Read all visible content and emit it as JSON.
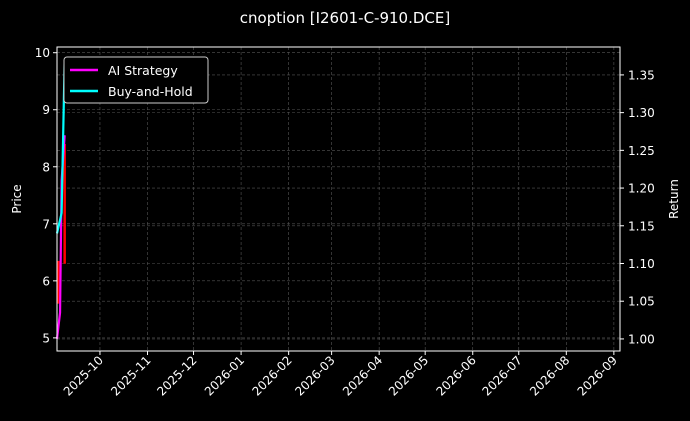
{
  "chart_data": {
    "type": "line",
    "title": "cnoption [I2601-C-910.DCE]",
    "ylabel_left": "Price",
    "ylabel_right": "Return",
    "xlabel": "",
    "xlim": [
      "2025-09-03",
      "2026-09-05"
    ],
    "ylim_left": [
      4.77,
      10.1
    ],
    "ylim_right": [
      0.984,
      1.387
    ],
    "x_tick_labels": [
      "2025-10",
      "2025-11",
      "2025-12",
      "2026-01",
      "2026-02",
      "2026-03",
      "2026-04",
      "2026-05",
      "2026-06",
      "2026-07",
      "2026-08",
      "2026-09"
    ],
    "y_left_ticks": [
      5,
      6,
      7,
      8,
      9,
      10
    ],
    "y_right_ticks": [
      "1.00",
      "1.05",
      "1.10",
      "1.15",
      "1.20",
      "1.25",
      "1.30",
      "1.35"
    ],
    "grid": true,
    "legend_position": "top-left",
    "series": [
      {
        "name": "AI Strategy",
        "axis": "right",
        "color": "#ff00ff",
        "x": [
          "2025-09-03",
          "2025-09-05",
          "2025-09-06",
          "2025-09-08"
        ],
        "values": [
          1.0,
          1.035,
          1.21,
          1.27
        ]
      },
      {
        "name": "Buy-and-Hold",
        "axis": "right",
        "color": "#00ffff",
        "x": [
          "2025-09-03",
          "2025-09-06",
          "2025-09-08"
        ],
        "values": [
          1.14,
          1.167,
          1.37
        ]
      }
    ],
    "price_bars": {
      "axis": "left",
      "color": "#ff0000",
      "x": [
        "2025-09-04",
        "2025-09-08"
      ],
      "low": [
        5.6,
        6.3
      ],
      "high": [
        6.35,
        8.4
      ]
    }
  }
}
